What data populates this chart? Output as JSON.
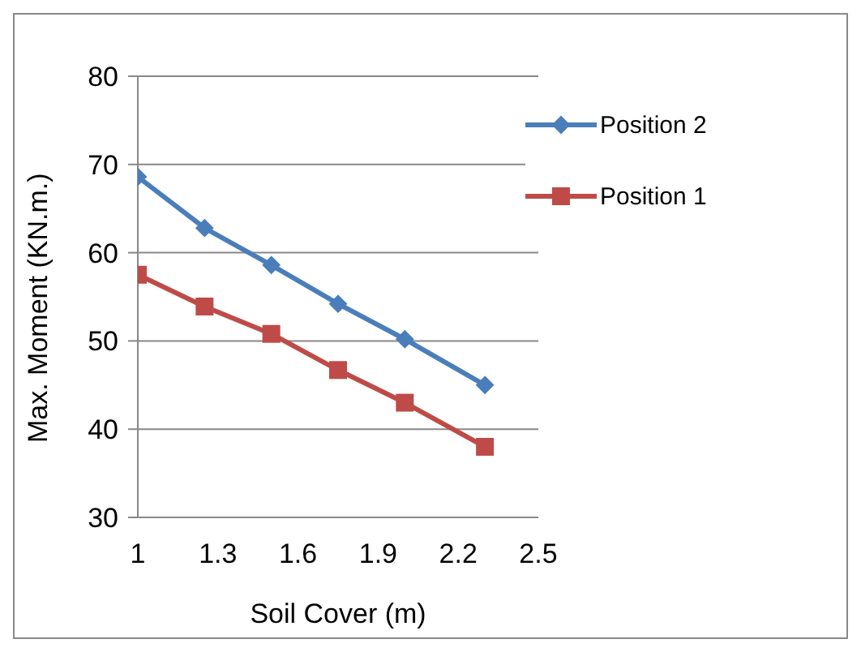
{
  "chart_data": {
    "type": "line",
    "xlabel": "Soil Cover (m)",
    "ylabel": "Max. Moment (KN.m.)",
    "x": [
      1,
      1.25,
      1.5,
      1.75,
      2.0,
      2.3
    ],
    "series": [
      {
        "name": "Position 2",
        "color": "#4a7ebb",
        "marker": "diamond",
        "values": [
          68.6,
          62.8,
          58.6,
          54.2,
          50.2,
          45
        ]
      },
      {
        "name": "Position 1",
        "color": "#be4b48",
        "marker": "square",
        "values": [
          57.5,
          53.9,
          50.8,
          46.7,
          43,
          38
        ]
      }
    ],
    "xlim": [
      1,
      2.5
    ],
    "xticks": [
      1,
      1.3,
      1.6,
      1.9,
      2.2,
      2.5
    ],
    "ylim": [
      30,
      80
    ],
    "yticks": [
      30,
      40,
      50,
      60,
      70,
      80
    ],
    "grid": "y",
    "legend": "top right",
    "line_style": "solid"
  }
}
